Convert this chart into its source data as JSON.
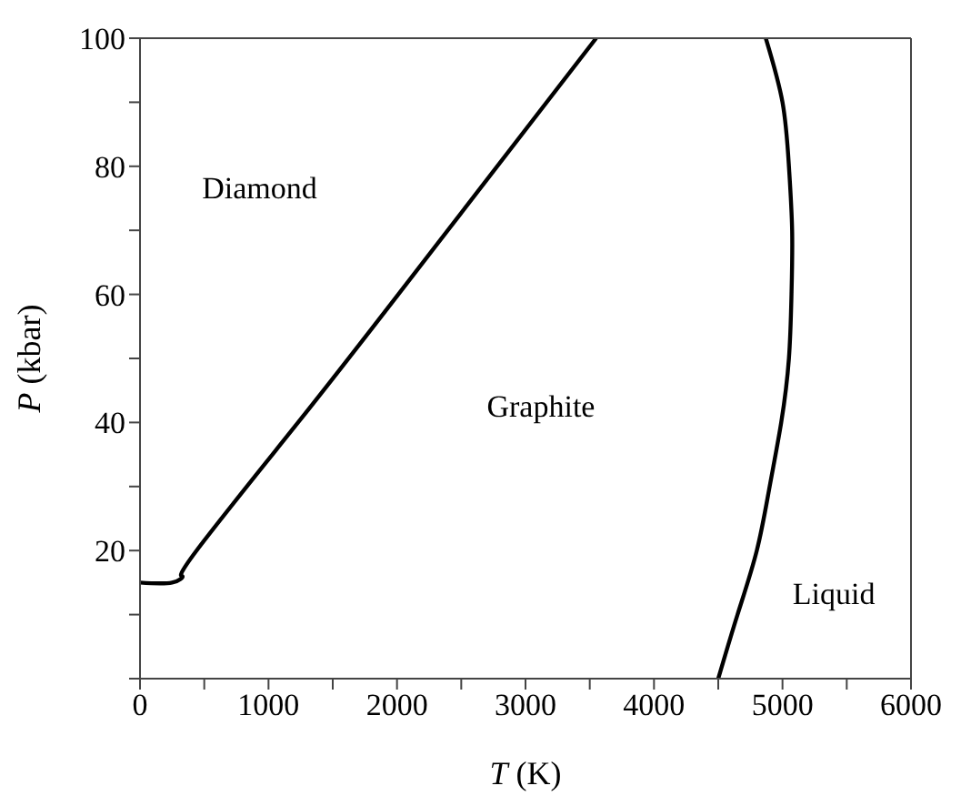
{
  "chart_data": {
    "type": "line",
    "xlabel": "T (K)",
    "ylabel": "P (kbar)",
    "xlim": [
      0,
      6000
    ],
    "ylim": [
      0,
      100
    ],
    "xticks": [
      0,
      {
        "value": 500,
        "label": null
      },
      1000,
      {
        "value": 1500,
        "label": null
      },
      2000,
      {
        "value": 2500,
        "label": null
      },
      3000,
      {
        "value": 3500,
        "label": null
      },
      4000,
      {
        "value": 4500,
        "label": null
      },
      5000,
      {
        "value": 5500,
        "label": null
      },
      6000
    ],
    "yticks": [
      {
        "value": 0,
        "label": null
      },
      {
        "value": 10,
        "label": null
      },
      20,
      {
        "value": 30,
        "label": null
      },
      40,
      {
        "value": 50,
        "label": null
      },
      60,
      {
        "value": 70,
        "label": null
      },
      80,
      {
        "value": 90,
        "label": null
      },
      100
    ],
    "marker": "none",
    "line_style": "solid",
    "series": [
      {
        "color": "#000000",
        "x": [
          0,
          250,
          330,
          440,
          1230,
          2010,
          3550
        ],
        "values": [
          15,
          15,
          16,
          20,
          40,
          60,
          100
        ]
      },
      {
        "color": "#000000",
        "x": [
          4500,
          4650,
          4800,
          4900,
          4990,
          5050,
          5070,
          5075,
          5050,
          5000,
          4870
        ],
        "values": [
          0,
          10,
          20,
          30,
          40,
          50,
          60,
          70,
          80,
          90,
          100
        ]
      }
    ],
    "annotations": [
      "Diamond",
      "Graphite",
      "Liquid"
    ]
  }
}
